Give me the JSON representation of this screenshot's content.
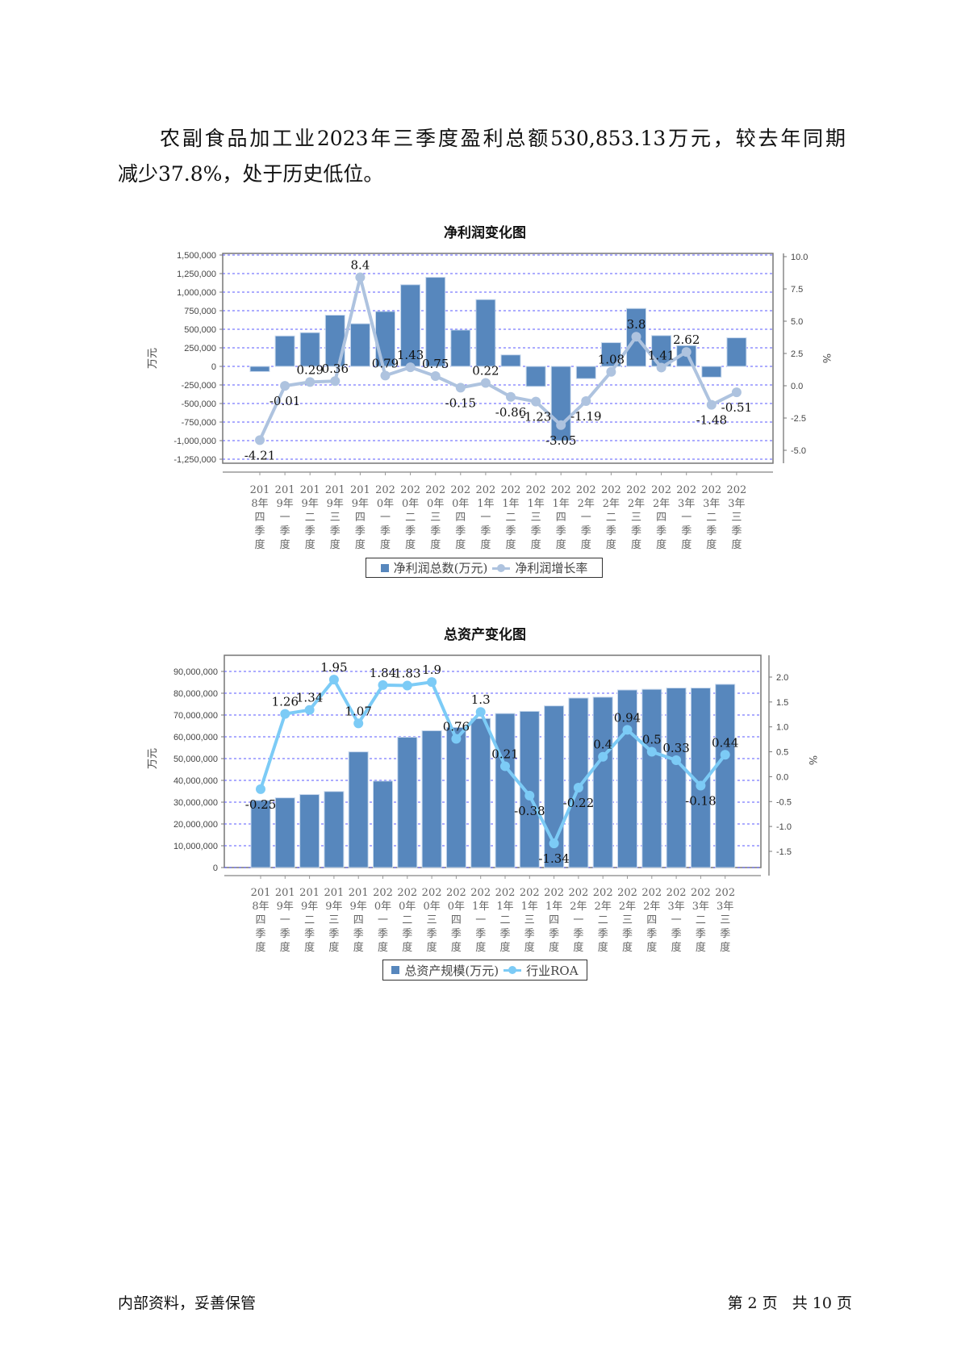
{
  "paragraph": {
    "line1": "农副食品加工业2023年三季度盈利总额530,853.13万元，较去年同期",
    "line2": "减少37.8%，处于历史低位。"
  },
  "footer": {
    "left": "内部资料，妥善保管",
    "right": "第 2 页   共 10 页"
  },
  "chart_data": [
    {
      "type": "bar+line",
      "title": "净利润变化图",
      "ylabel": "万元",
      "y2label": "%",
      "ylim": [
        -1300000,
        1500000
      ],
      "y2lim": [
        -5.0,
        10.0
      ],
      "yticks": [
        "1,500,000",
        "1,250,000",
        "1,000,000",
        "750,000",
        "500,000",
        "250,000",
        "0",
        "-250,000",
        "-500,000",
        "-750,000",
        "-1,000,000",
        "-1,250,000"
      ],
      "ytick_values": [
        1500000,
        1250000,
        1000000,
        750000,
        500000,
        250000,
        0,
        -250000,
        -500000,
        -750000,
        -1000000,
        -1250000
      ],
      "y2ticks": [
        "10.0",
        "7.5",
        "5.0",
        "2.5",
        "0.0",
        "-2.5",
        "-5.0"
      ],
      "y2tick_values": [
        10,
        7.5,
        5,
        2.5,
        0,
        -2.5,
        -5
      ],
      "grid": true,
      "legend_position": "bottom",
      "categories": [
        "2018年四季度",
        "2019年一季度",
        "2019年二季度",
        "2019年三季度",
        "2019年四季度",
        "2020年一季度",
        "2020年二季度",
        "2020年三季度",
        "2020年四季度",
        "2021年一季度",
        "2021年二季度",
        "2021年三季度",
        "2021年四季度",
        "2022年一季度",
        "2022年二季度",
        "2022年三季度",
        "2022年四季度",
        "2023年一季度",
        "2023年二季度",
        "2023年三季度"
      ],
      "series": [
        {
          "name": "净利润总数(万元)",
          "type": "bar",
          "color": "#5787bd",
          "values": [
            -70000,
            410000,
            455000,
            690000,
            575000,
            740000,
            1100000,
            1200000,
            490000,
            900000,
            155000,
            -270000,
            -1000000,
            -165000,
            320000,
            780000,
            415000,
            280000,
            -145000,
            385000
          ]
        },
        {
          "name": "净利润增长率",
          "type": "line",
          "color": "#aec3df",
          "values": [
            -4.21,
            -0.01,
            0.29,
            0.36,
            8.4,
            0.79,
            1.43,
            0.75,
            -0.15,
            0.22,
            -0.86,
            -1.23,
            -3.05,
            -1.19,
            1.08,
            3.8,
            1.41,
            2.62,
            -1.48,
            -0.51
          ]
        }
      ]
    },
    {
      "type": "bar+line",
      "title": "总资产变化图",
      "ylabel": "万元",
      "y2label": "%",
      "ylim": [
        0,
        97000000
      ],
      "y2lim": [
        -1.8,
        2.4
      ],
      "yticks": [
        "90,000,000",
        "80,000,000",
        "70,000,000",
        "60,000,000",
        "50,000,000",
        "40,000,000",
        "30,000,000",
        "20,000,000",
        "10,000,000",
        "0"
      ],
      "ytick_values": [
        90000000,
        80000000,
        70000000,
        60000000,
        50000000,
        40000000,
        30000000,
        20000000,
        10000000,
        0
      ],
      "y2ticks": [
        "2.0",
        "1.5",
        "1.0",
        "0.5",
        "0.0",
        "-0.5",
        "-1.0",
        "-1.5"
      ],
      "y2tick_values": [
        2,
        1.5,
        1,
        0.5,
        0,
        -0.5,
        -1,
        -1.5
      ],
      "grid": true,
      "legend_position": "bottom",
      "categories": [
        "2018年四季度",
        "2019年一季度",
        "2019年二季度",
        "2019年三季度",
        "2019年四季度",
        "2020年一季度",
        "2020年二季度",
        "2020年三季度",
        "2020年四季度",
        "2021年一季度",
        "2021年二季度",
        "2021年三季度",
        "2021年四季度",
        "2022年一季度",
        "2022年二季度",
        "2022年三季度",
        "2022年四季度",
        "2023年一季度",
        "2023年二季度",
        "2023年三季度"
      ],
      "series": [
        {
          "name": "总资产规模(万元)",
          "type": "bar",
          "color": "#5787bd",
          "values": [
            30800000,
            32000000,
            33500000,
            34900000,
            53100000,
            39700000,
            59800000,
            62800000,
            64300000,
            68400000,
            70700000,
            71700000,
            74200000,
            77800000,
            78200000,
            81500000,
            81800000,
            82400000,
            82400000,
            84100000
          ]
        },
        {
          "name": "行业ROA",
          "type": "line",
          "color": "#7ccbf6",
          "values": [
            -0.25,
            1.26,
            1.34,
            1.95,
            1.07,
            1.84,
            1.83,
            1.9,
            0.76,
            1.3,
            0.21,
            -0.38,
            -1.34,
            -0.22,
            0.4,
            0.94,
            0.5,
            0.33,
            -0.18,
            0.44
          ]
        }
      ]
    }
  ]
}
